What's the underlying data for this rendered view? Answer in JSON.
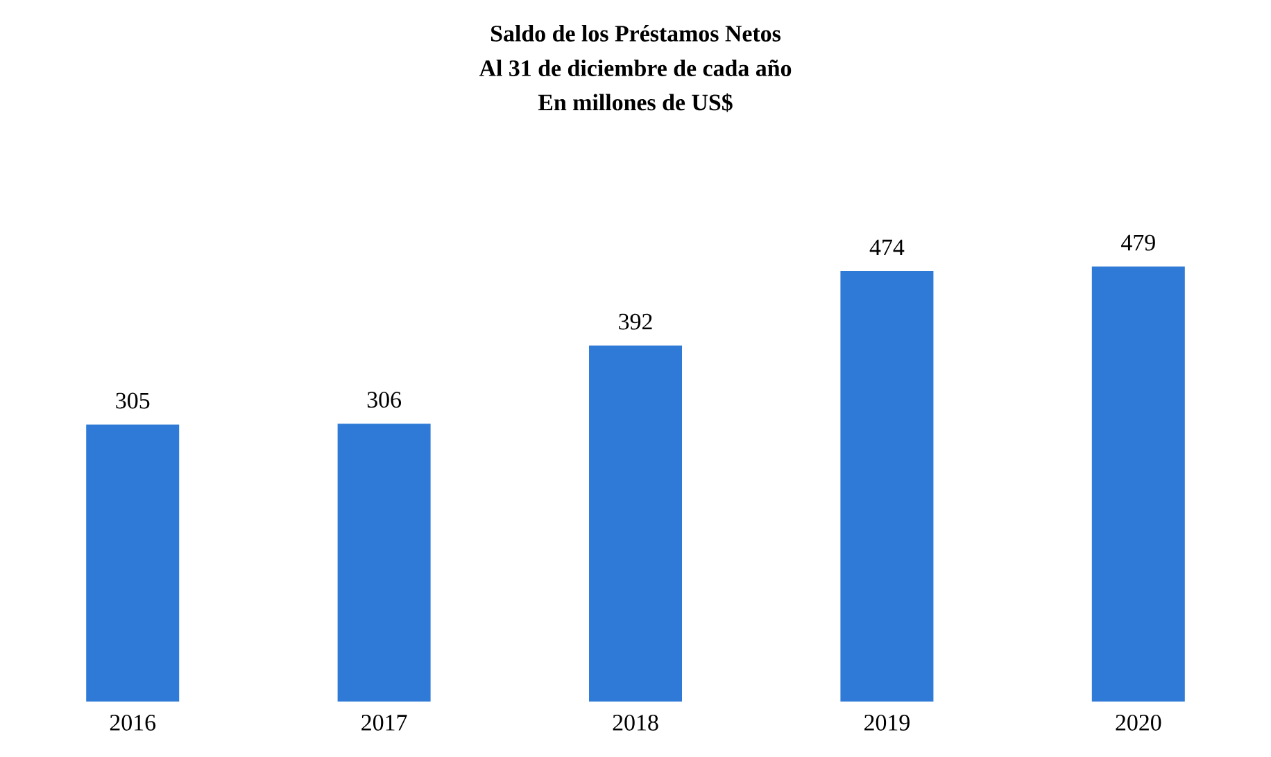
{
  "chart_data": {
    "type": "bar",
    "title": "Saldo de los Préstamos Netos",
    "subtitle": "Al 31 de diciembre de cada año",
    "annotations": [
      "En millones de US$"
    ],
    "categories": [
      "2016",
      "2017",
      "2018",
      "2019",
      "2020"
    ],
    "values": [
      305,
      306,
      392,
      474,
      479
    ],
    "color": "#2f7ad6",
    "data_labels": true
  }
}
